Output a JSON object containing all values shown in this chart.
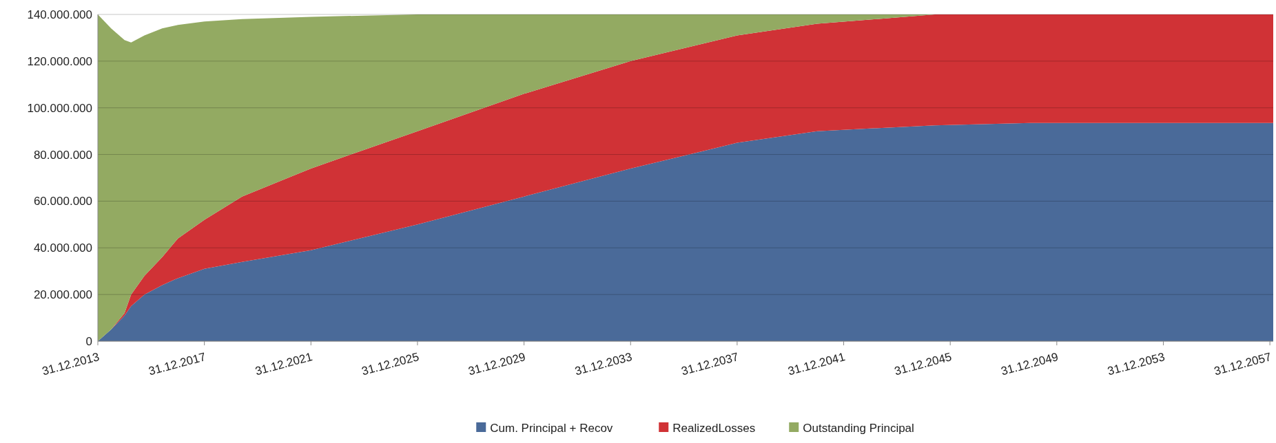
{
  "chart_data": {
    "type": "area",
    "stacked": true,
    "grid": "y",
    "legend": "bottom",
    "x": [
      "2013-12-31",
      "2014-07-01",
      "2015-01-01",
      "2015-04-01",
      "2015-10-01",
      "2016-06-01",
      "2017-01-01",
      "2018-01-01",
      "2019-06-01",
      "2022-01-01",
      "2026-01-01",
      "2030-01-01",
      "2034-01-01",
      "2038-01-01",
      "2041-01-01",
      "2045-06-01",
      "2049-01-01",
      "2058-02-15"
    ],
    "series": [
      {
        "name": "Cum. Principal + Recov",
        "color": "#4a6a99",
        "values": [
          0,
          5000000,
          11000000,
          15000000,
          20000000,
          24000000,
          27000000,
          31000000,
          34000000,
          39000000,
          50000000,
          62000000,
          74000000,
          85000000,
          90000000,
          92500000,
          93500000,
          93500000
        ]
      },
      {
        "name": "RealizedLosses",
        "color": "#d03236",
        "values": [
          0,
          0,
          1000000,
          5000000,
          8000000,
          12000000,
          17000000,
          21000000,
          28000000,
          35000000,
          40000000,
          44000000,
          46000000,
          46000000,
          46000000,
          47500000,
          46500000,
          46500000
        ]
      },
      {
        "name": "Outstanding Principal",
        "color": "#93aa62",
        "values": [
          140000000,
          129000000,
          117000000,
          108000000,
          103000000,
          98000000,
          91500000,
          85000000,
          76000000,
          65000000,
          50000000,
          34000000,
          20000000,
          9000000,
          4000000,
          0,
          null,
          null
        ]
      }
    ],
    "xlim": [
      "2013-12-31",
      "2058-02-15"
    ],
    "xticks": [
      {
        "value": "2013-12-31",
        "label": "31.12.2013"
      },
      {
        "value": "2017-12-31",
        "label": "31.12.2017"
      },
      {
        "value": "2021-12-31",
        "label": "31.12.2021"
      },
      {
        "value": "2025-12-31",
        "label": "31.12.2025"
      },
      {
        "value": "2029-12-31",
        "label": "31.12.2029"
      },
      {
        "value": "2033-12-31",
        "label": "31.12.2033"
      },
      {
        "value": "2037-12-31",
        "label": "31.12.2037"
      },
      {
        "value": "2041-12-31",
        "label": "31.12.2041"
      },
      {
        "value": "2045-12-31",
        "label": "31.12.2045"
      },
      {
        "value": "2049-12-31",
        "label": "31.12.2049"
      },
      {
        "value": "2053-12-31",
        "label": "31.12.2053"
      },
      {
        "value": "2057-12-31",
        "label": "31.12.2057"
      }
    ],
    "ylim": [
      0,
      140000000
    ],
    "yticks": [
      0,
      {
        "value": 20000000,
        "label": "20.000.000"
      },
      {
        "value": 40000000,
        "label": "40.000.000"
      },
      {
        "value": 60000000,
        "label": "60.000.000"
      },
      {
        "value": 80000000,
        "label": "80.000.000"
      },
      {
        "value": 100000000,
        "label": "100.000.000"
      },
      {
        "value": 120000000,
        "label": "120.000.000"
      },
      {
        "value": 140000000,
        "label": "140.000.000"
      }
    ]
  }
}
